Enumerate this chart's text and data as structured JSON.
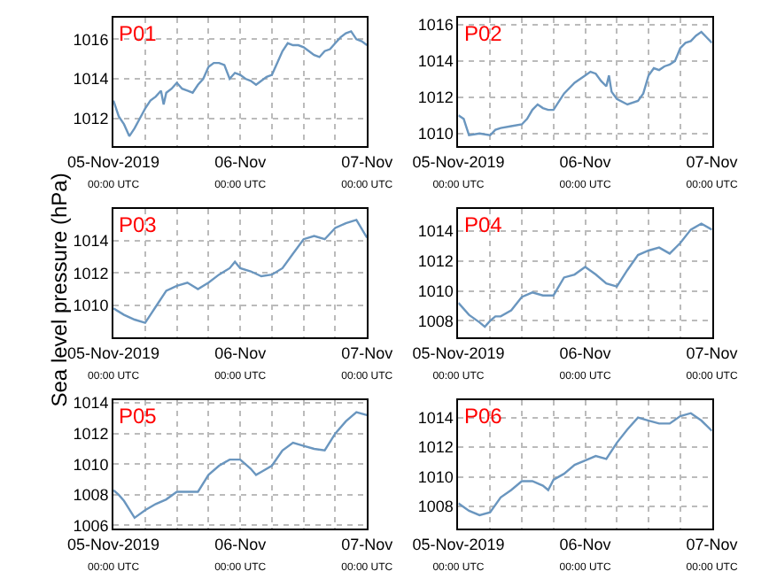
{
  "chart_data": [
    {
      "type": "line",
      "title": "P01",
      "grid": true,
      "x": [
        "2019-11-05T00:00",
        "2019-11-05T01:00",
        "2019-11-05T02:00",
        "2019-11-05T03:00",
        "2019-11-05T04:00",
        "2019-11-05T05:00",
        "2019-11-05T06:00",
        "2019-11-05T07:00",
        "2019-11-05T08:00",
        "2019-11-05T09:00",
        "2019-11-05T09:30",
        "2019-11-05T10:00",
        "2019-11-05T11:00",
        "2019-11-05T12:00",
        "2019-11-05T13:00",
        "2019-11-05T14:00",
        "2019-11-05T15:00",
        "2019-11-05T16:00",
        "2019-11-05T17:00",
        "2019-11-05T18:00",
        "2019-11-05T19:00",
        "2019-11-05T20:00",
        "2019-11-05T21:00",
        "2019-11-05T22:00",
        "2019-11-05T23:00",
        "2019-11-06T00:00",
        "2019-11-06T01:00",
        "2019-11-06T02:00",
        "2019-11-06T03:00",
        "2019-11-06T04:00",
        "2019-11-06T05:00",
        "2019-11-06T06:00",
        "2019-11-06T07:00",
        "2019-11-06T08:00",
        "2019-11-06T09:00",
        "2019-11-06T10:00",
        "2019-11-06T11:00",
        "2019-11-06T12:00",
        "2019-11-06T13:00",
        "2019-11-06T14:00",
        "2019-11-06T15:00",
        "2019-11-06T16:00",
        "2019-11-06T17:00",
        "2019-11-06T18:00",
        "2019-11-06T19:00",
        "2019-11-06T20:00",
        "2019-11-06T21:00",
        "2019-11-06T22:00",
        "2019-11-06T23:00",
        "2019-11-07T00:00"
      ],
      "series": [
        {
          "color": "#6a96bf",
          "values": [
            1012.9,
            1012.1,
            1011.7,
            1011.1,
            1011.5,
            1012.0,
            1012.5,
            1012.9,
            1013.1,
            1013.4,
            1012.7,
            1013.3,
            1013.5,
            1013.8,
            1013.5,
            1013.4,
            1013.3,
            1013.7,
            1014.0,
            1014.6,
            1014.8,
            1014.8,
            1014.7,
            1014.0,
            1014.3,
            1014.2,
            1014.0,
            1013.9,
            1013.7,
            1013.9,
            1014.1,
            1014.2,
            1014.8,
            1015.4,
            1015.8,
            1015.7,
            1015.7,
            1015.6,
            1015.4,
            1015.2,
            1015.1,
            1015.4,
            1015.5,
            1015.8,
            1016.1,
            1016.3,
            1016.4,
            1016.0,
            1015.9,
            1015.7
          ]
        }
      ],
      "xlim": [
        "2019-11-05T00:00",
        "2019-11-07T00:00"
      ],
      "xticks": [
        {
          "value": "2019-11-05T00:00",
          "label": "05-Nov-2019\n00:00 UTC"
        },
        {
          "value": "2019-11-05T06:00",
          "label": null
        },
        {
          "value": "2019-11-05T12:00",
          "label": null
        },
        {
          "value": "2019-11-05T18:00",
          "label": null
        },
        {
          "value": "2019-11-06T00:00",
          "label": "06-Nov\n00:00 UTC"
        },
        {
          "value": "2019-11-06T06:00",
          "label": null
        },
        {
          "value": "2019-11-06T12:00",
          "label": null
        },
        {
          "value": "2019-11-06T18:00",
          "label": null
        },
        {
          "value": "2019-11-07T00:00",
          "label": "07-Nov\n00:00 UTC"
        }
      ],
      "ylim": [
        1010.6,
        1017.1
      ],
      "yticks": [
        1012,
        1014,
        1016
      ]
    },
    {
      "type": "line",
      "title": "P02",
      "grid": true,
      "x": [
        "2019-11-05T00:00",
        "2019-11-05T01:00",
        "2019-11-05T02:00",
        "2019-11-05T04:00",
        "2019-11-05T06:00",
        "2019-11-05T07:00",
        "2019-11-05T08:00",
        "2019-11-05T10:00",
        "2019-11-05T12:00",
        "2019-11-05T13:00",
        "2019-11-05T14:00",
        "2019-11-05T15:00",
        "2019-11-05T16:00",
        "2019-11-05T17:00",
        "2019-11-05T18:00",
        "2019-11-05T20:00",
        "2019-11-05T22:00",
        "2019-11-06T00:00",
        "2019-11-06T01:00",
        "2019-11-06T02:00",
        "2019-11-06T03:00",
        "2019-11-06T04:00",
        "2019-11-06T04:30",
        "2019-11-06T05:00",
        "2019-11-06T06:00",
        "2019-11-06T08:00",
        "2019-11-06T10:00",
        "2019-11-06T11:00",
        "2019-11-06T12:00",
        "2019-11-06T13:00",
        "2019-11-06T14:00",
        "2019-11-06T15:00",
        "2019-11-06T16:00",
        "2019-11-06T17:00",
        "2019-11-06T18:00",
        "2019-11-06T19:00",
        "2019-11-06T20:00",
        "2019-11-06T21:00",
        "2019-11-06T22:00",
        "2019-11-06T23:00",
        "2019-11-07T00:00"
      ],
      "series": [
        {
          "color": "#6a96bf",
          "values": [
            1011.0,
            1010.8,
            1009.9,
            1010.0,
            1009.9,
            1010.2,
            1010.3,
            1010.4,
            1010.5,
            1010.8,
            1011.3,
            1011.6,
            1011.4,
            1011.3,
            1011.3,
            1012.2,
            1012.8,
            1013.2,
            1013.4,
            1013.3,
            1012.9,
            1012.6,
            1013.2,
            1012.3,
            1011.9,
            1011.6,
            1011.8,
            1012.2,
            1013.2,
            1013.6,
            1013.5,
            1013.7,
            1013.8,
            1014.0,
            1014.7,
            1015.0,
            1015.1,
            1015.4,
            1015.6,
            1015.3,
            1015.0
          ]
        }
      ],
      "xlim": [
        "2019-11-05T00:00",
        "2019-11-07T00:00"
      ],
      "xticks": [
        {
          "value": "2019-11-05T00:00",
          "label": "05-Nov-2019\n00:00 UTC"
        },
        {
          "value": "2019-11-05T06:00",
          "label": null
        },
        {
          "value": "2019-11-05T12:00",
          "label": null
        },
        {
          "value": "2019-11-05T18:00",
          "label": null
        },
        {
          "value": "2019-11-06T00:00",
          "label": "06-Nov\n00:00 UTC"
        },
        {
          "value": "2019-11-06T06:00",
          "label": null
        },
        {
          "value": "2019-11-06T12:00",
          "label": null
        },
        {
          "value": "2019-11-06T18:00",
          "label": null
        },
        {
          "value": "2019-11-07T00:00",
          "label": "07-Nov\n00:00 UTC"
        }
      ],
      "ylim": [
        1009.3,
        1016.4
      ],
      "yticks": [
        1010,
        1012,
        1014,
        1016
      ]
    },
    {
      "type": "line",
      "title": "P03",
      "ylabel": "Sea level pressure (hPa)",
      "grid": true,
      "x": [
        "2019-11-05T00:00",
        "2019-11-05T02:00",
        "2019-11-05T04:00",
        "2019-11-05T06:00",
        "2019-11-05T07:00",
        "2019-11-05T08:00",
        "2019-11-05T10:00",
        "2019-11-05T12:00",
        "2019-11-05T14:00",
        "2019-11-05T16:00",
        "2019-11-05T18:00",
        "2019-11-05T20:00",
        "2019-11-05T22:00",
        "2019-11-05T23:00",
        "2019-11-06T00:00",
        "2019-11-06T02:00",
        "2019-11-06T04:00",
        "2019-11-06T06:00",
        "2019-11-06T08:00",
        "2019-11-06T10:00",
        "2019-11-06T12:00",
        "2019-11-06T14:00",
        "2019-11-06T16:00",
        "2019-11-06T18:00",
        "2019-11-06T20:00",
        "2019-11-06T22:00",
        "2019-11-07T00:00"
      ],
      "series": [
        {
          "color": "#6a96bf",
          "values": [
            1009.8,
            1009.4,
            1009.1,
            1008.9,
            1009.4,
            1009.9,
            1010.9,
            1011.2,
            1011.4,
            1011.0,
            1011.4,
            1011.9,
            1012.3,
            1012.7,
            1012.3,
            1012.1,
            1011.8,
            1011.9,
            1012.3,
            1013.2,
            1014.1,
            1014.3,
            1014.1,
            1014.8,
            1015.1,
            1015.3,
            1014.2
          ]
        }
      ],
      "xlim": [
        "2019-11-05T00:00",
        "2019-11-07T00:00"
      ],
      "xticks": [
        {
          "value": "2019-11-05T00:00",
          "label": "05-Nov-2019\n00:00 UTC"
        },
        {
          "value": "2019-11-05T06:00",
          "label": null
        },
        {
          "value": "2019-11-05T12:00",
          "label": null
        },
        {
          "value": "2019-11-05T18:00",
          "label": null
        },
        {
          "value": "2019-11-06T00:00",
          "label": "06-Nov\n00:00 UTC"
        },
        {
          "value": "2019-11-06T06:00",
          "label": null
        },
        {
          "value": "2019-11-06T12:00",
          "label": null
        },
        {
          "value": "2019-11-06T18:00",
          "label": null
        },
        {
          "value": "2019-11-07T00:00",
          "label": "07-Nov\n00:00 UTC"
        }
      ],
      "ylim": [
        1008.0,
        1016.0
      ],
      "yticks": [
        1010,
        1012,
        1014
      ]
    },
    {
      "type": "line",
      "title": "P04",
      "grid": true,
      "x": [
        "2019-11-05T00:00",
        "2019-11-05T02:00",
        "2019-11-05T04:00",
        "2019-11-05T05:00",
        "2019-11-05T06:00",
        "2019-11-05T07:00",
        "2019-11-05T08:00",
        "2019-11-05T10:00",
        "2019-11-05T12:00",
        "2019-11-05T14:00",
        "2019-11-05T16:00",
        "2019-11-05T18:00",
        "2019-11-05T20:00",
        "2019-11-05T22:00",
        "2019-11-06T00:00",
        "2019-11-06T02:00",
        "2019-11-06T04:00",
        "2019-11-06T06:00",
        "2019-11-06T08:00",
        "2019-11-06T10:00",
        "2019-11-06T12:00",
        "2019-11-06T14:00",
        "2019-11-06T16:00",
        "2019-11-06T18:00",
        "2019-11-06T20:00",
        "2019-11-06T22:00",
        "2019-11-07T00:00"
      ],
      "series": [
        {
          "color": "#6a96bf",
          "values": [
            1009.2,
            1008.4,
            1007.9,
            1007.6,
            1008.0,
            1008.3,
            1008.3,
            1008.7,
            1009.6,
            1009.9,
            1009.7,
            1009.7,
            1010.9,
            1011.1,
            1011.6,
            1011.1,
            1010.5,
            1010.3,
            1011.4,
            1012.4,
            1012.7,
            1012.9,
            1012.5,
            1013.2,
            1014.1,
            1014.5,
            1014.1
          ]
        }
      ],
      "xlim": [
        "2019-11-05T00:00",
        "2019-11-07T00:00"
      ],
      "xticks": [
        {
          "value": "2019-11-05T00:00",
          "label": "05-Nov-2019\n00:00 UTC"
        },
        {
          "value": "2019-11-05T06:00",
          "label": null
        },
        {
          "value": "2019-11-05T12:00",
          "label": null
        },
        {
          "value": "2019-11-05T18:00",
          "label": null
        },
        {
          "value": "2019-11-06T00:00",
          "label": "06-Nov\n00:00 UTC"
        },
        {
          "value": "2019-11-06T06:00",
          "label": null
        },
        {
          "value": "2019-11-06T12:00",
          "label": null
        },
        {
          "value": "2019-11-06T18:00",
          "label": null
        },
        {
          "value": "2019-11-07T00:00",
          "label": "07-Nov\n00:00 UTC"
        }
      ],
      "ylim": [
        1006.9,
        1015.5
      ],
      "yticks": [
        1008,
        1010,
        1012,
        1014
      ]
    },
    {
      "type": "line",
      "title": "P05",
      "grid": true,
      "x": [
        "2019-11-05T00:00",
        "2019-11-05T01:00",
        "2019-11-05T02:00",
        "2019-11-05T04:00",
        "2019-11-05T06:00",
        "2019-11-05T08:00",
        "2019-11-05T10:00",
        "2019-11-05T12:00",
        "2019-11-05T14:00",
        "2019-11-05T16:00",
        "2019-11-05T18:00",
        "2019-11-05T20:00",
        "2019-11-05T22:00",
        "2019-11-06T00:00",
        "2019-11-06T02:00",
        "2019-11-06T03:00",
        "2019-11-06T04:00",
        "2019-11-06T06:00",
        "2019-11-06T08:00",
        "2019-11-06T10:00",
        "2019-11-06T12:00",
        "2019-11-06T14:00",
        "2019-11-06T16:00",
        "2019-11-06T18:00",
        "2019-11-06T20:00",
        "2019-11-06T22:00",
        "2019-11-07T00:00"
      ],
      "series": [
        {
          "color": "#6a96bf",
          "values": [
            1008.3,
            1008.0,
            1007.6,
            1006.5,
            1007.0,
            1007.4,
            1007.7,
            1008.2,
            1008.2,
            1008.2,
            1009.3,
            1009.9,
            1010.3,
            1010.3,
            1009.7,
            1009.3,
            1009.5,
            1009.9,
            1010.9,
            1011.4,
            1011.2,
            1011.0,
            1010.9,
            1012.0,
            1012.8,
            1013.4,
            1013.2
          ]
        }
      ],
      "xlim": [
        "2019-11-05T00:00",
        "2019-11-07T00:00"
      ],
      "xticks": [
        {
          "value": "2019-11-05T00:00",
          "label": "05-Nov-2019\n00:00 UTC"
        },
        {
          "value": "2019-11-05T06:00",
          "label": null
        },
        {
          "value": "2019-11-05T12:00",
          "label": null
        },
        {
          "value": "2019-11-05T18:00",
          "label": null
        },
        {
          "value": "2019-11-06T00:00",
          "label": "06-Nov\n00:00 UTC"
        },
        {
          "value": "2019-11-06T06:00",
          "label": null
        },
        {
          "value": "2019-11-06T12:00",
          "label": null
        },
        {
          "value": "2019-11-06T18:00",
          "label": null
        },
        {
          "value": "2019-11-07T00:00",
          "label": "07-Nov\n00:00 UTC"
        }
      ],
      "ylim": [
        1005.8,
        1014.2
      ],
      "yticks": [
        1006,
        1008,
        1010,
        1012,
        1014
      ]
    },
    {
      "type": "line",
      "title": "P06",
      "grid": true,
      "x": [
        "2019-11-05T00:00",
        "2019-11-05T02:00",
        "2019-11-05T04:00",
        "2019-11-05T06:00",
        "2019-11-05T08:00",
        "2019-11-05T10:00",
        "2019-11-05T12:00",
        "2019-11-05T14:00",
        "2019-11-05T16:00",
        "2019-11-05T17:00",
        "2019-11-05T18:00",
        "2019-11-05T20:00",
        "2019-11-05T22:00",
        "2019-11-06T00:00",
        "2019-11-06T02:00",
        "2019-11-06T04:00",
        "2019-11-06T06:00",
        "2019-11-06T08:00",
        "2019-11-06T10:00",
        "2019-11-06T12:00",
        "2019-11-06T14:00",
        "2019-11-06T16:00",
        "2019-11-06T18:00",
        "2019-11-06T20:00",
        "2019-11-06T22:00",
        "2019-11-07T00:00"
      ],
      "series": [
        {
          "color": "#6a96bf",
          "values": [
            1008.2,
            1007.7,
            1007.4,
            1007.6,
            1008.6,
            1009.1,
            1009.7,
            1009.7,
            1009.4,
            1009.1,
            1009.8,
            1010.2,
            1010.8,
            1011.1,
            1011.4,
            1011.2,
            1012.3,
            1013.2,
            1014.0,
            1013.8,
            1013.6,
            1013.6,
            1014.1,
            1014.3,
            1013.8,
            1013.1
          ]
        }
      ],
      "xlim": [
        "2019-11-05T00:00",
        "2019-11-07T00:00"
      ],
      "xticks": [
        {
          "value": "2019-11-05T00:00",
          "label": "05-Nov-2019\n00:00 UTC"
        },
        {
          "value": "2019-11-05T06:00",
          "label": null
        },
        {
          "value": "2019-11-05T12:00",
          "label": null
        },
        {
          "value": "2019-11-05T18:00",
          "label": null
        },
        {
          "value": "2019-11-06T00:00",
          "label": "06-Nov\n00:00 UTC"
        },
        {
          "value": "2019-11-06T06:00",
          "label": null
        },
        {
          "value": "2019-11-06T12:00",
          "label": null
        },
        {
          "value": "2019-11-06T18:00",
          "label": null
        },
        {
          "value": "2019-11-07T00:00",
          "label": "07-Nov\n00:00 UTC"
        }
      ],
      "ylim": [
        1006.5,
        1015.2
      ],
      "yticks": [
        1008,
        1010,
        1012,
        1014
      ]
    }
  ]
}
